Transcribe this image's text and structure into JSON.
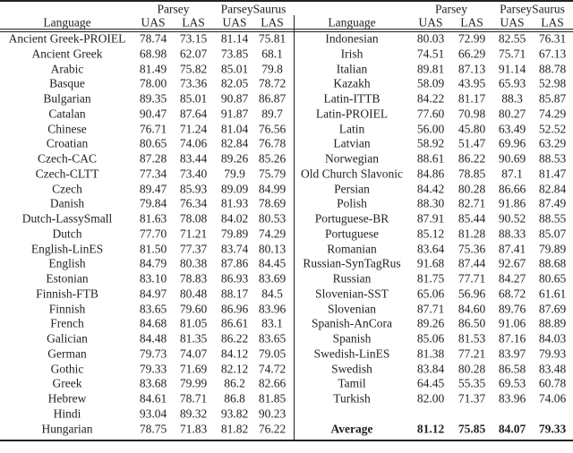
{
  "table": {
    "group_headers": [
      "Parsey",
      "ParseySaurus"
    ],
    "columns": [
      "Language",
      "UAS",
      "LAS",
      "UAS",
      "LAS"
    ],
    "left_rows": [
      [
        "Ancient Greek-PROIEL",
        "78.74",
        "73.15",
        "81.14",
        "75.81"
      ],
      [
        "Ancient Greek",
        "68.98",
        "62.07",
        "73.85",
        "68.1"
      ],
      [
        "Arabic",
        "81.49",
        "75.82",
        "85.01",
        "79.8"
      ],
      [
        "Basque",
        "78.00",
        "73.36",
        "82.05",
        "78.72"
      ],
      [
        "Bulgarian",
        "89.35",
        "85.01",
        "90.87",
        "86.87"
      ],
      [
        "Catalan",
        "90.47",
        "87.64",
        "91.87",
        "89.7"
      ],
      [
        "Chinese",
        "76.71",
        "71.24",
        "81.04",
        "76.56"
      ],
      [
        "Croatian",
        "80.65",
        "74.06",
        "82.84",
        "76.78"
      ],
      [
        "Czech-CAC",
        "87.28",
        "83.44",
        "89.26",
        "85.26"
      ],
      [
        "Czech-CLTT",
        "77.34",
        "73.40",
        "79.9",
        "75.79"
      ],
      [
        "Czech",
        "89.47",
        "85.93",
        "89.09",
        "84.99"
      ],
      [
        "Danish",
        "79.84",
        "76.34",
        "81.93",
        "78.69"
      ],
      [
        "Dutch-LassySmall",
        "81.63",
        "78.08",
        "84.02",
        "80.53"
      ],
      [
        "Dutch",
        "77.70",
        "71.21",
        "79.89",
        "74.29"
      ],
      [
        "English-LinES",
        "81.50",
        "77.37",
        "83.74",
        "80.13"
      ],
      [
        "English",
        "84.79",
        "80.38",
        "87.86",
        "84.45"
      ],
      [
        "Estonian",
        "83.10",
        "78.83",
        "86.93",
        "83.69"
      ],
      [
        "Finnish-FTB",
        "84.97",
        "80.48",
        "88.17",
        "84.5"
      ],
      [
        "Finnish",
        "83.65",
        "79.60",
        "86.96",
        "83.96"
      ],
      [
        "French",
        "84.68",
        "81.05",
        "86.61",
        "83.1"
      ],
      [
        "Galician",
        "84.48",
        "81.35",
        "86.22",
        "83.65"
      ],
      [
        "German",
        "79.73",
        "74.07",
        "84.12",
        "79.05"
      ],
      [
        "Gothic",
        "79.33",
        "71.69",
        "82.12",
        "74.72"
      ],
      [
        "Greek",
        "83.68",
        "79.99",
        "86.2",
        "82.66"
      ],
      [
        "Hebrew",
        "84.61",
        "78.71",
        "86.8",
        "81.85"
      ],
      [
        "Hindi",
        "93.04",
        "89.32",
        "93.82",
        "90.23"
      ],
      [
        "Hungarian",
        "78.75",
        "71.83",
        "81.82",
        "76.22"
      ]
    ],
    "right_rows": [
      [
        "Indonesian",
        "80.03",
        "72.99",
        "82.55",
        "76.31"
      ],
      [
        "Irish",
        "74.51",
        "66.29",
        "75.71",
        "67.13"
      ],
      [
        "Italian",
        "89.81",
        "87.13",
        "91.14",
        "88.78"
      ],
      [
        "Kazakh",
        "58.09",
        "43.95",
        "65.93",
        "52.98"
      ],
      [
        "Latin-ITTB",
        "84.22",
        "81.17",
        "88.3",
        "85.87"
      ],
      [
        "Latin-PROIEL",
        "77.60",
        "70.98",
        "80.27",
        "74.29"
      ],
      [
        "Latin",
        "56.00",
        "45.80",
        "63.49",
        "52.52"
      ],
      [
        "Latvian",
        "58.92",
        "51.47",
        "69.96",
        "63.29"
      ],
      [
        "Norwegian",
        "88.61",
        "86.22",
        "90.69",
        "88.53"
      ],
      [
        "Old Church Slavonic",
        "84.86",
        "78.85",
        "87.1",
        "81.47"
      ],
      [
        "Persian",
        "84.42",
        "80.28",
        "86.66",
        "82.84"
      ],
      [
        "Polish",
        "88.30",
        "82.71",
        "91.86",
        "87.49"
      ],
      [
        "Portuguese-BR",
        "87.91",
        "85.44",
        "90.52",
        "88.55"
      ],
      [
        "Portuguese",
        "85.12",
        "81.28",
        "88.33",
        "85.07"
      ],
      [
        "Romanian",
        "83.64",
        "75.36",
        "87.41",
        "79.89"
      ],
      [
        "Russian-SynTagRus",
        "91.68",
        "87.44",
        "92.67",
        "88.68"
      ],
      [
        "Russian",
        "81.75",
        "77.71",
        "84.27",
        "80.65"
      ],
      [
        "Slovenian-SST",
        "65.06",
        "56.96",
        "68.72",
        "61.61"
      ],
      [
        "Slovenian",
        "87.71",
        "84.60",
        "89.76",
        "87.69"
      ],
      [
        "Spanish-AnCora",
        "89.26",
        "86.50",
        "91.06",
        "88.89"
      ],
      [
        "Spanish",
        "85.06",
        "81.53",
        "87.16",
        "84.03"
      ],
      [
        "Swedish-LinES",
        "81.38",
        "77.21",
        "83.97",
        "79.93"
      ],
      [
        "Swedish",
        "83.84",
        "80.28",
        "86.58",
        "83.48"
      ],
      [
        "Tamil",
        "64.45",
        "55.35",
        "69.53",
        "60.78"
      ],
      [
        "Turkish",
        "82.00",
        "71.37",
        "83.96",
        "74.06"
      ]
    ],
    "average_row": [
      "Average",
      "81.12",
      "75.85",
      "84.07",
      "79.33"
    ]
  }
}
